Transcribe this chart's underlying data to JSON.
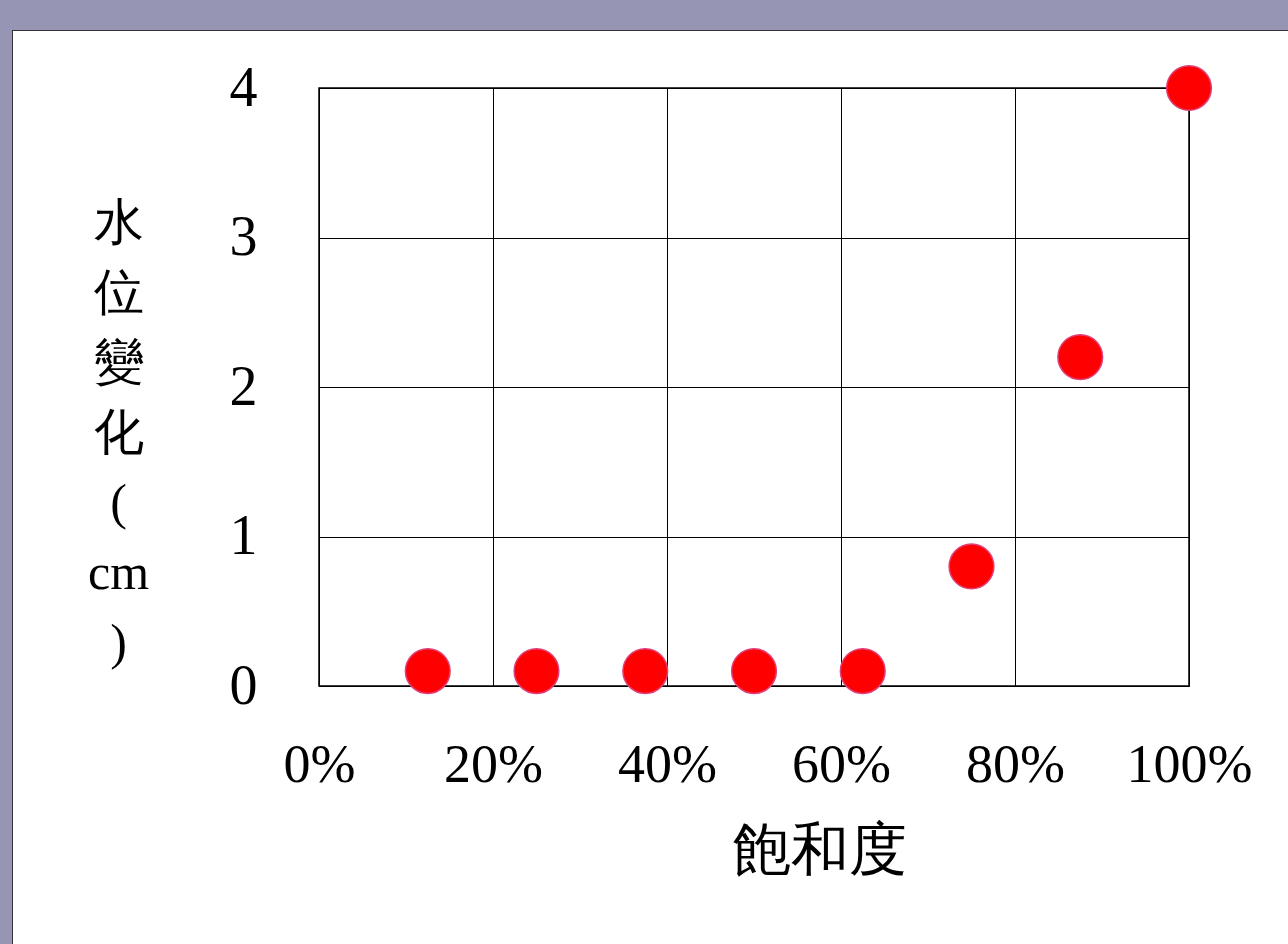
{
  "chart_data": {
    "type": "scatter",
    "xlabel": "飽和度",
    "ylabel": "水位變化(cm)",
    "x": [
      12.5,
      25,
      37.5,
      50,
      62.5,
      75,
      87.5,
      100
    ],
    "series": [
      {
        "color": "#ff0000",
        "values": [
          0.1,
          0.1,
          0.1,
          0.1,
          0.1,
          0.8,
          2.2,
          4.0
        ]
      }
    ],
    "xlim": [
      0,
      100
    ],
    "xticks": [
      {
        "value": 0,
        "label": "0%"
      },
      {
        "value": 20,
        "label": "20%"
      },
      {
        "value": 40,
        "label": "40%"
      },
      {
        "value": 60,
        "label": "60%"
      },
      {
        "value": 80,
        "label": "80%"
      },
      {
        "value": 100,
        "label": "100%"
      }
    ],
    "ylim": [
      0,
      4
    ],
    "yticks": [
      0,
      1,
      2,
      3,
      4
    ],
    "grid": true,
    "marker": "circle",
    "legend": false
  }
}
